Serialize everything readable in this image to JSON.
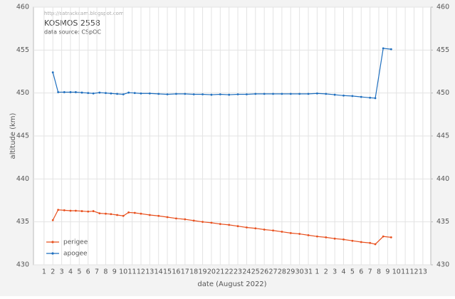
{
  "chart_data": {
    "type": "line",
    "title": "KOSMOS 2558",
    "subtitle": "data source:  CSpOC",
    "watermark": "http://satrackcam.blogspot.com",
    "xlabel": "date (August 2022)",
    "ylabel": "altitude  (km)",
    "x": [
      2,
      2.6,
      3.3,
      4,
      4.6,
      5.3,
      6,
      6.6,
      7.3,
      8,
      8.6,
      9.3,
      10,
      10.6,
      11.3,
      12,
      13,
      14,
      15,
      16,
      17,
      18,
      19,
      20,
      21,
      22,
      23,
      24,
      25,
      26,
      27,
      28,
      29,
      30,
      31,
      32,
      33,
      34,
      35,
      36,
      37,
      38,
      38.6,
      39.5,
      40.4
    ],
    "series": [
      {
        "name": "perigee",
        "color": "#e8501e",
        "values": [
          435.2,
          436.4,
          436.35,
          436.3,
          436.3,
          436.25,
          436.2,
          436.25,
          436.0,
          435.95,
          435.9,
          435.8,
          435.7,
          436.1,
          436.05,
          435.95,
          435.8,
          435.7,
          435.55,
          435.4,
          435.3,
          435.15,
          435.0,
          434.9,
          434.75,
          434.65,
          434.5,
          434.35,
          434.25,
          434.1,
          434.0,
          433.85,
          433.7,
          433.6,
          433.45,
          433.3,
          433.2,
          433.05,
          432.95,
          432.8,
          432.65,
          432.55,
          432.4,
          433.3,
          433.2
        ]
      },
      {
        "name": "apogee",
        "color": "#1f6fbf",
        "values": [
          452.4,
          450.1,
          450.1,
          450.1,
          450.1,
          450.05,
          450.0,
          449.95,
          450.05,
          450.0,
          449.95,
          449.9,
          449.85,
          450.05,
          450.0,
          449.95,
          449.95,
          449.9,
          449.85,
          449.9,
          449.9,
          449.85,
          449.85,
          449.8,
          449.85,
          449.8,
          449.85,
          449.85,
          449.9,
          449.9,
          449.9,
          449.9,
          449.9,
          449.9,
          449.9,
          449.95,
          449.9,
          449.8,
          449.7,
          449.65,
          449.55,
          449.45,
          449.4,
          455.2,
          455.1
        ]
      }
    ],
    "xlim": [
      -0.2,
      44.9
    ],
    "xticks": [
      1,
      2,
      3,
      4,
      5,
      6,
      7,
      8,
      9,
      10,
      11,
      12,
      13,
      14,
      15,
      16,
      17,
      18,
      19,
      20,
      21,
      22,
      23,
      24,
      25,
      26,
      27,
      28,
      29,
      30,
      31,
      {
        "value": 32,
        "label": "1"
      },
      {
        "value": 33,
        "label": "2"
      },
      {
        "value": 34,
        "label": "3"
      },
      {
        "value": 35,
        "label": "4"
      },
      {
        "value": 36,
        "label": "5"
      },
      {
        "value": 37,
        "label": "6"
      },
      {
        "value": 38,
        "label": "7"
      },
      {
        "value": 39,
        "label": "8"
      },
      {
        "value": 40,
        "label": "9"
      },
      {
        "value": 41,
        "label": "10"
      },
      {
        "value": 42,
        "label": "11"
      },
      {
        "value": 43,
        "label": "12"
      },
      {
        "value": 44,
        "label": "13"
      }
    ],
    "ylim": [
      430,
      460
    ],
    "yticks": [
      430,
      435,
      440,
      445,
      450,
      455,
      460
    ],
    "y2lim": [
      430,
      460
    ],
    "y2ticks": [
      430,
      435,
      440,
      445,
      450,
      455,
      460
    ],
    "grid": true,
    "legend": "lower left"
  }
}
